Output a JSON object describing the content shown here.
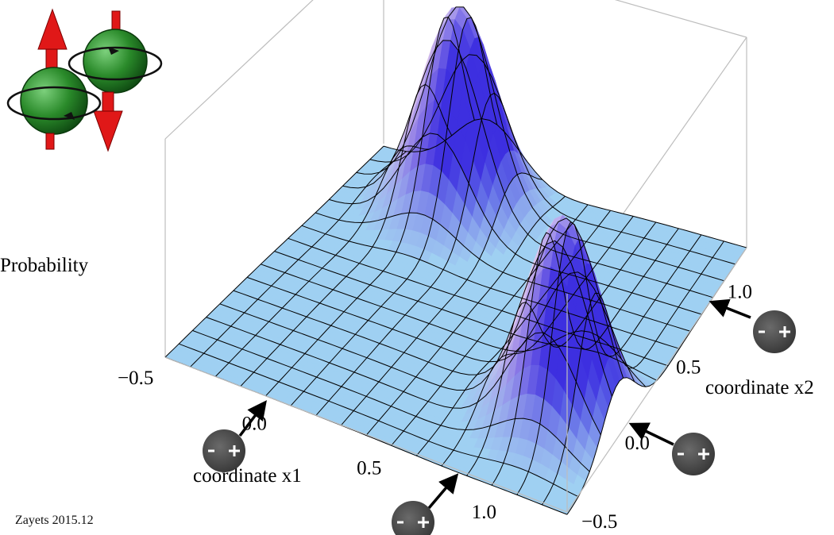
{
  "chart_data": {
    "type": "surface3d",
    "title": "",
    "zlabel": "Probability",
    "xlabel": "coordinate x1",
    "ylabel": "coordinate x2",
    "x_ticks": [
      "−0.5",
      "0.0",
      "0.5",
      "1.0"
    ],
    "y_ticks": [
      "−0.5",
      "0.0",
      "0.5",
      "1.0"
    ],
    "xlim": [
      -0.5,
      1.25
    ],
    "ylim": [
      -0.5,
      1.25
    ],
    "peaks": [
      {
        "x1": 0.0,
        "x2": 1.0,
        "height": 1.0,
        "width": 0.16
      },
      {
        "x1": 1.0,
        "x2": 0.0,
        "height": 1.0,
        "width": 0.16
      }
    ],
    "grid_lines": 17
  },
  "credit": "Zayets 2015.12",
  "colors": {
    "surface": "#9fd0f2",
    "mesh": "#000000",
    "peak_side": "#3d2fe0",
    "peak_top": "#f1d9ee",
    "box": "#bdbdbd",
    "electron": "#444444",
    "spin_sphere": "#2a8a2a",
    "spin_arrow": "#e01818"
  },
  "icons": [
    "spin-pair-icon",
    "electron-plus-icon",
    "pointer-arrow-icon"
  ]
}
